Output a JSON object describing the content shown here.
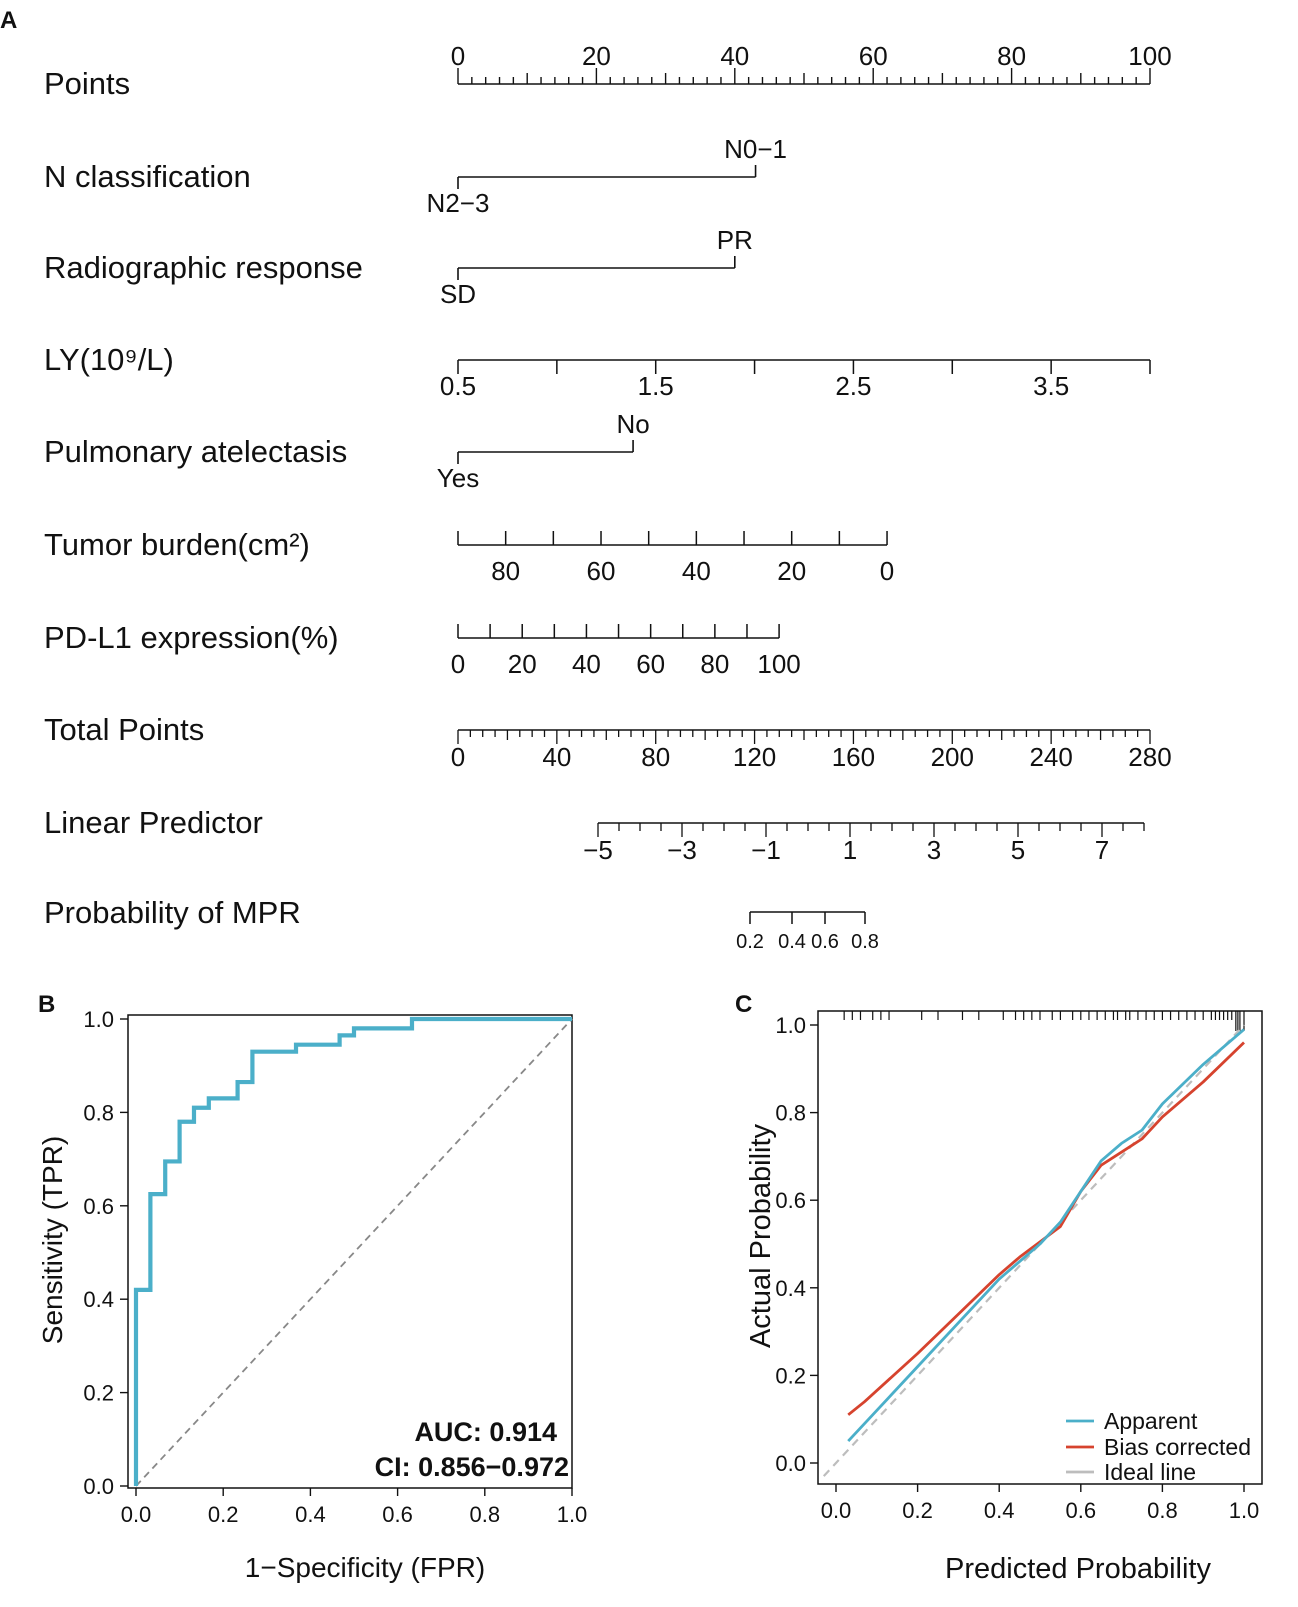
{
  "panel_labels": {
    "a": "A",
    "b": "B",
    "c": "C"
  },
  "colors": {
    "roc": "#4bafc9",
    "apparent": "#4bafc9",
    "bias": "#d6432e",
    "ideal": "#bdbdbd",
    "diagonal": "#888888"
  },
  "chart_data": [
    {
      "id": "nomogram",
      "type": "nomogram",
      "title": "",
      "rows": [
        {
          "name": "Points",
          "range": [
            0,
            100
          ],
          "ticks": [
            0,
            20,
            40,
            60,
            80,
            100
          ],
          "tick_labels": [
            "0",
            "20",
            "40",
            "60",
            "80",
            "100"
          ],
          "minor_step": 2
        },
        {
          "name": "N classification",
          "categories": [
            {
              "label": "N2−3",
              "points": 0
            },
            {
              "label": "N0−1",
              "points": 43
            }
          ]
        },
        {
          "name": "Radiographic response",
          "categories": [
            {
              "label": "SD",
              "points": 0
            },
            {
              "label": "PR",
              "points": 40
            }
          ]
        },
        {
          "name": "LY(10⁹/L)",
          "value_range": [
            0.5,
            4.0
          ],
          "points_range": [
            0,
            100
          ],
          "ticks": [
            0.5,
            1.0,
            1.5,
            2.0,
            2.5,
            3.0,
            3.5,
            4.0
          ],
          "tick_labels": [
            "0.5",
            "",
            "1.5",
            "",
            "2.5",
            "",
            "3.5",
            ""
          ]
        },
        {
          "name": "Pulmonary atelectasis",
          "categories": [
            {
              "label": "Yes",
              "points": 0
            },
            {
              "label": "No",
              "points": 25.3
            }
          ]
        },
        {
          "name": "Tumor burden(cm²)",
          "value_range": [
            90,
            0
          ],
          "points_range": [
            0,
            62
          ],
          "ticks": [
            90,
            80,
            70,
            60,
            50,
            40,
            30,
            20,
            10,
            0
          ],
          "tick_labels": [
            "",
            "80",
            "",
            "60",
            "",
            "40",
            "",
            "20",
            "",
            "0"
          ]
        },
        {
          "name": "PD-L1 expression(%)",
          "value_range": [
            0,
            100
          ],
          "points_range": [
            0,
            46.4
          ],
          "ticks": [
            0,
            10,
            20,
            30,
            40,
            50,
            60,
            70,
            80,
            90,
            100
          ],
          "tick_labels": [
            "0",
            "",
            "20",
            "",
            "40",
            "",
            "60",
            "",
            "80",
            "",
            "100"
          ]
        },
        {
          "name": "Total Points",
          "range": [
            0,
            280
          ],
          "ticks": [
            0,
            40,
            80,
            120,
            160,
            200,
            240,
            280
          ],
          "tick_labels": [
            "0",
            "40",
            "80",
            "120",
            "160",
            "200",
            "240",
            "280"
          ],
          "minor_step": 5
        },
        {
          "name": "Linear Predictor",
          "value_range": [
            -5,
            8
          ],
          "ticks": [
            -5,
            -3,
            -1,
            1,
            3,
            5,
            7
          ],
          "tick_labels": [
            "−5",
            "−3",
            "−1",
            "1",
            "3",
            "5",
            "7"
          ],
          "minor_step": 0.5
        },
        {
          "name": "Probability of MPR",
          "ticks": [
            0.2,
            0.4,
            0.6,
            0.8
          ],
          "tick_labels": [
            "0.2",
            "0.4",
            "0.6",
            "0.8"
          ]
        }
      ]
    },
    {
      "id": "roc",
      "type": "line",
      "title": "",
      "xlabel": "1−Specificity (FPR)",
      "ylabel": "Sensitivity (TPR)",
      "xlim": [
        0,
        1
      ],
      "ylim": [
        0,
        1
      ],
      "xticks": [
        "0.0",
        "0.2",
        "0.4",
        "0.6",
        "0.8",
        "1.0"
      ],
      "yticks": [
        "0.0",
        "0.2",
        "0.4",
        "0.6",
        "0.8",
        "1.0"
      ],
      "series": [
        {
          "name": "ROC",
          "x": [
            0,
            0,
            0,
            0.033,
            0.033,
            0.067,
            0.067,
            0.1,
            0.1,
            0.133,
            0.133,
            0.167,
            0.167,
            0.233,
            0.233,
            0.267,
            0.267,
            0.367,
            0.367,
            0.467,
            0.467,
            0.5,
            0.5,
            0.633,
            0.633,
            1.0
          ],
          "y": [
            0,
            0.42,
            0.42,
            0.42,
            0.625,
            0.625,
            0.695,
            0.695,
            0.78,
            0.78,
            0.81,
            0.81,
            0.83,
            0.83,
            0.865,
            0.865,
            0.93,
            0.93,
            0.945,
            0.945,
            0.965,
            0.965,
            0.98,
            0.98,
            1.0,
            1.0
          ]
        }
      ],
      "reference_line": "diagonal",
      "annotations": [
        "AUC: 0.914",
        "CI: 0.856−0.972"
      ]
    },
    {
      "id": "calibration",
      "type": "line",
      "title": "",
      "xlabel": "Predicted Probability",
      "ylabel": "Actual Probability",
      "xlim": [
        -0.03,
        1.02
      ],
      "ylim": [
        -0.03,
        1.03
      ],
      "xticks": [
        "0.0",
        "0.2",
        "0.4",
        "0.6",
        "0.8",
        "1.0"
      ],
      "yticks": [
        "0.0",
        "0.2",
        "0.4",
        "0.6",
        "0.8",
        "1.0"
      ],
      "legend": [
        "Apparent",
        "Bias corrected",
        "Ideal line"
      ],
      "legend_position": "bottom-right",
      "series": [
        {
          "name": "Apparent",
          "x": [
            0.03,
            0.1,
            0.2,
            0.3,
            0.4,
            0.5,
            0.55,
            0.6,
            0.65,
            0.7,
            0.75,
            0.8,
            0.9,
            1.0
          ],
          "y": [
            0.05,
            0.12,
            0.22,
            0.32,
            0.42,
            0.5,
            0.55,
            0.62,
            0.69,
            0.73,
            0.76,
            0.82,
            0.91,
            0.99
          ]
        },
        {
          "name": "Bias corrected",
          "x": [
            0.03,
            0.07,
            0.2,
            0.3,
            0.4,
            0.45,
            0.5,
            0.55,
            0.6,
            0.65,
            0.7,
            0.75,
            0.8,
            0.9,
            1.0
          ],
          "y": [
            0.11,
            0.14,
            0.25,
            0.34,
            0.43,
            0.47,
            0.505,
            0.54,
            0.62,
            0.68,
            0.71,
            0.74,
            0.79,
            0.87,
            0.96
          ]
        },
        {
          "name": "Ideal line",
          "x": [
            -0.03,
            1.0
          ],
          "y": [
            -0.03,
            1.0
          ]
        }
      ],
      "rug": [
        0.02,
        0.04,
        0.06,
        0.09,
        0.11,
        0.13,
        0.21,
        0.25,
        0.31,
        0.35,
        0.41,
        0.44,
        0.46,
        0.48,
        0.5,
        0.53,
        0.55,
        0.58,
        0.6,
        0.62,
        0.64,
        0.66,
        0.68,
        0.69,
        0.71,
        0.72,
        0.74,
        0.76,
        0.78,
        0.8,
        0.82,
        0.84,
        0.86,
        0.88,
        0.9,
        0.92,
        0.93,
        0.94,
        0.95,
        0.96,
        0.97,
        0.98,
        0.985,
        0.99,
        1.0
      ]
    }
  ]
}
